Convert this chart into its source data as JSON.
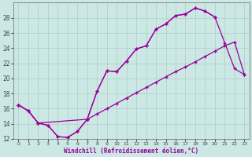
{
  "xlabel": "Windchill (Refroidissement éolien,°C)",
  "bg_color": "#cce8e4",
  "line_color": "#990099",
  "grid_color": "#b0ccc8",
  "xlim": [
    -0.5,
    23.5
  ],
  "ylim": [
    12,
    30
  ],
  "xticks": [
    0,
    1,
    2,
    3,
    4,
    5,
    6,
    7,
    8,
    9,
    10,
    11,
    12,
    13,
    14,
    15,
    16,
    17,
    18,
    19,
    20,
    21,
    22,
    23
  ],
  "yticks": [
    12,
    14,
    16,
    18,
    20,
    22,
    24,
    26,
    28
  ],
  "line1_x": [
    0,
    1,
    2,
    3,
    4,
    5,
    6,
    7,
    8,
    9,
    10,
    11,
    12,
    13,
    14,
    15,
    16,
    17,
    18,
    19,
    20,
    21,
    22,
    23
  ],
  "line1_y": [
    16.5,
    15.7,
    14.1,
    13.8,
    12.3,
    12.2,
    13.0,
    14.6,
    18.3,
    21.0,
    20.9,
    22.3,
    23.9,
    24.3,
    26.5,
    27.2,
    28.3,
    28.5,
    29.3,
    28.9,
    28.1,
    24.7,
    21.3,
    20.5
  ],
  "line2_x": [
    0,
    1,
    2,
    3,
    4,
    5,
    6,
    7,
    8,
    9,
    10,
    11,
    12,
    13,
    14,
    15,
    16,
    17,
    18,
    19,
    20,
    21,
    22,
    23
  ],
  "line2_y": [
    16.5,
    15.7,
    14.1,
    13.8,
    12.3,
    12.2,
    13.0,
    14.6,
    15.3,
    16.0,
    16.7,
    17.4,
    18.1,
    18.8,
    19.5,
    20.2,
    20.9,
    21.5,
    22.2,
    22.9,
    23.6,
    24.3,
    24.8,
    20.5
  ],
  "line3_x": [
    0,
    1,
    2,
    7,
    8,
    9,
    10,
    11,
    12,
    13,
    14,
    15,
    16,
    17,
    18,
    19,
    20
  ],
  "line3_y": [
    16.5,
    15.7,
    14.1,
    14.6,
    18.3,
    21.0,
    20.9,
    22.3,
    23.9,
    24.3,
    26.5,
    27.2,
    28.3,
    28.5,
    29.3,
    28.9,
    28.1
  ]
}
